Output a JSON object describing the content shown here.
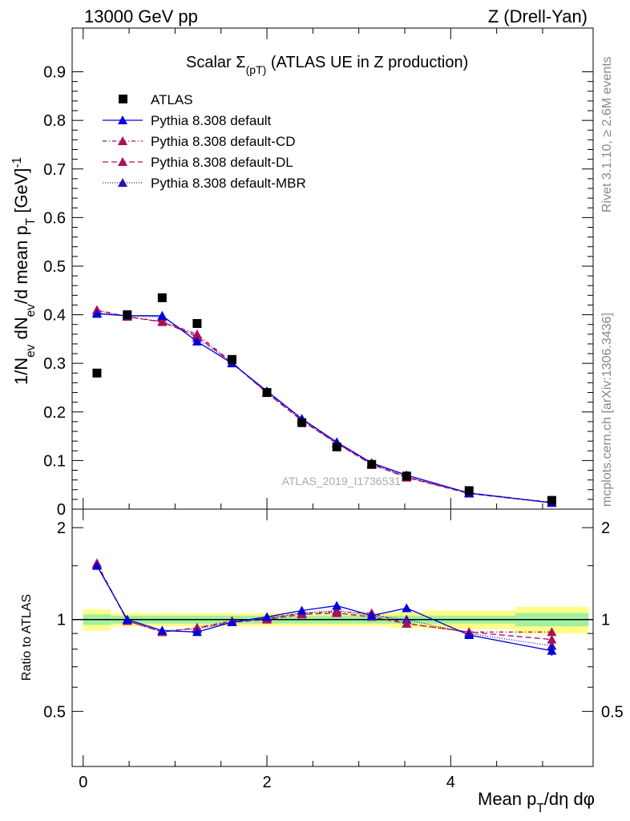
{
  "header": {
    "left": "13000 GeV pp",
    "right": "Z (Drell-Yan)"
  },
  "side": {
    "rivet": "Rivet 3.1.10, ≥ 2.6M events",
    "mcplots": "mcplots.cern.ch [arXiv:1306.3436]"
  },
  "colors": {
    "data": "#000000",
    "default": "#0000dd",
    "cd": "#aa1155",
    "dl": "#aa1166",
    "mbr": "#3311aa",
    "band_green": "#a0f0a0",
    "band_yellow": "#ffff88"
  },
  "chart_data": {
    "type": "scatter",
    "title": "Scalar Σ(p_T) (ATLAS UE in Z production)",
    "watermark": "ATLAS_2019_I1736531",
    "xlabel": "Mean p_T/dη dφ",
    "ylabel": "1/N_ev dN_ev/d mean p_T [GeV]^-1",
    "ratio_ylabel": "Ratio to ATLAS",
    "xlim": [
      -0.12,
      5.55
    ],
    "ylim": [
      0,
      0.99
    ],
    "ratio_ylim": [
      0.33,
      2.3
    ],
    "x_ticks": [
      "0",
      "2",
      "4"
    ],
    "y_ticks": [
      "0",
      "0.1",
      "0.2",
      "0.3",
      "0.4",
      "0.5",
      "0.6",
      "0.7",
      "0.8",
      "0.9"
    ],
    "ratio_ticks": [
      "0.5",
      "1",
      "2"
    ],
    "x": [
      0.15,
      0.48,
      0.86,
      1.24,
      1.62,
      2.0,
      2.38,
      2.76,
      3.14,
      3.52,
      4.2,
      5.1
    ],
    "data": {
      "name": "ATLAS",
      "values": [
        0.28,
        0.4,
        0.435,
        0.382,
        0.308,
        0.24,
        0.178,
        0.128,
        0.092,
        0.068,
        0.038,
        0.018
      ],
      "band_inner": [
        0.04,
        0.03,
        0.03,
        0.03,
        0.03,
        0.03,
        0.03,
        0.03,
        0.03,
        0.03,
        0.03,
        0.05
      ],
      "band_outer": [
        0.08,
        0.05,
        0.05,
        0.05,
        0.05,
        0.05,
        0.05,
        0.05,
        0.05,
        0.06,
        0.07,
        0.1
      ],
      "bin_edges": [
        0.0,
        0.3,
        0.66,
        1.05,
        1.43,
        1.81,
        2.19,
        2.57,
        2.95,
        3.33,
        3.71,
        4.7,
        5.5
      ]
    },
    "series": [
      {
        "name": "Pythia 8.308 default",
        "values": [
          0.402,
          0.398,
          0.398,
          0.345,
          0.3,
          0.243,
          0.186,
          0.138,
          0.095,
          0.07,
          0.033,
          0.013
        ],
        "ratio": [
          1.5,
          1.0,
          0.92,
          0.91,
          0.98,
          1.02,
          1.07,
          1.11,
          1.03,
          1.09,
          0.89,
          0.79
        ],
        "ratio_err": [
          0.02,
          0.01,
          0.01,
          0.01,
          0.01,
          0.01,
          0.02,
          0.02,
          0.02,
          0.03,
          0.02,
          0.03
        ]
      },
      {
        "name": "Pythia 8.308 default-CD",
        "values": [
          0.41,
          0.396,
          0.386,
          0.36,
          0.302,
          0.24,
          0.183,
          0.136,
          0.093,
          0.066,
          0.033,
          0.014
        ],
        "ratio": [
          1.53,
          0.99,
          0.91,
          0.94,
          0.99,
          1.01,
          1.05,
          1.06,
          1.05,
          0.97,
          0.91,
          0.91
        ],
        "ratio_err": [
          0.02,
          0.01,
          0.01,
          0.01,
          0.01,
          0.01,
          0.02,
          0.02,
          0.02,
          0.03,
          0.02,
          0.03
        ]
      },
      {
        "name": "Pythia 8.308 default-DL",
        "values": [
          0.409,
          0.396,
          0.385,
          0.356,
          0.301,
          0.239,
          0.182,
          0.135,
          0.092,
          0.065,
          0.032,
          0.013
        ],
        "ratio": [
          1.52,
          0.99,
          0.91,
          0.94,
          0.98,
          1.0,
          1.04,
          1.05,
          1.02,
          0.97,
          0.91,
          0.86
        ],
        "ratio_err": [
          0.02,
          0.01,
          0.01,
          0.01,
          0.01,
          0.01,
          0.02,
          0.02,
          0.02,
          0.03,
          0.02,
          0.03
        ]
      },
      {
        "name": "Pythia 8.308 default-MBR",
        "values": [
          0.404,
          0.398,
          0.395,
          0.352,
          0.301,
          0.241,
          0.184,
          0.136,
          0.093,
          0.067,
          0.033,
          0.013
        ],
        "ratio": [
          1.51,
          1.0,
          0.92,
          0.93,
          0.98,
          1.01,
          1.05,
          1.07,
          1.03,
          1.0,
          0.9,
          0.82
        ],
        "ratio_err": [
          0.02,
          0.01,
          0.01,
          0.01,
          0.01,
          0.01,
          0.02,
          0.02,
          0.02,
          0.03,
          0.02,
          0.03
        ]
      }
    ]
  }
}
